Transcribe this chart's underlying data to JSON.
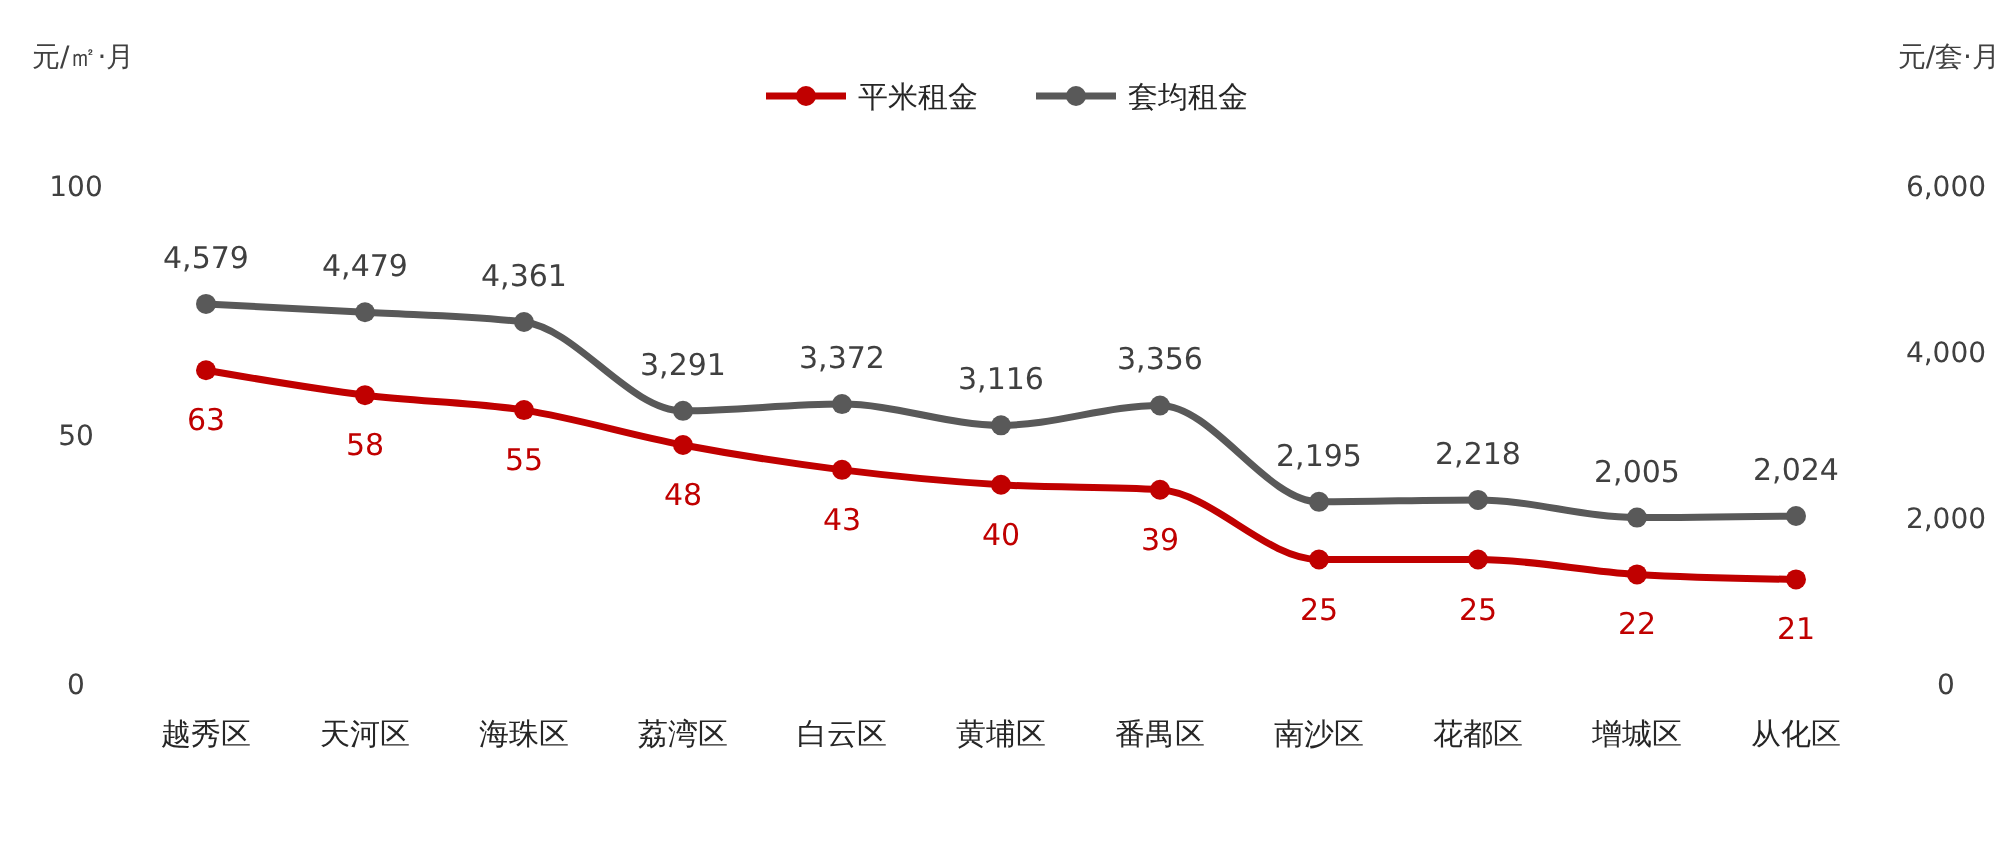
{
  "chart_data": {
    "type": "line",
    "categories": [
      "越秀区",
      "天河区",
      "海珠区",
      "荔湾区",
      "白云区",
      "黄埔区",
      "番禺区",
      "南沙区",
      "花都区",
      "增城区",
      "从化区"
    ],
    "ylabel": "元/㎡·月",
    "y2label": "元/套·月",
    "ylim": [
      0,
      100
    ],
    "yticks": [
      0,
      50,
      100
    ],
    "y2lim": [
      0,
      6000
    ],
    "y2ticks": [
      0,
      {
        "value": 2000,
        "label": "2,000"
      },
      {
        "value": 4000,
        "label": "4,000"
      },
      {
        "value": 6000,
        "label": "6,000"
      }
    ],
    "series": [
      {
        "name": "平米租金",
        "color": "#c00000",
        "values": [
          63,
          58,
          55,
          48,
          43,
          40,
          39,
          25,
          25,
          22,
          21
        ],
        "value_labels": [
          "63",
          "58",
          "55",
          "48",
          "43",
          "40",
          "39",
          "25",
          "25",
          "22",
          "21"
        ]
      },
      {
        "name": "套均租金",
        "color": "#595959",
        "axis": "y2",
        "values": [
          4579,
          4479,
          4361,
          3291,
          3372,
          3116,
          3356,
          2195,
          2218,
          2005,
          2024
        ],
        "value_labels": [
          "4,579",
          "4,479",
          "4,361",
          "3,291",
          "3,372",
          "3,116",
          "3,356",
          "2,195",
          "2,218",
          "2,005",
          "2,024"
        ]
      }
    ],
    "marker": "circle",
    "line_style": "solid",
    "legend": "top",
    "grid": false
  }
}
